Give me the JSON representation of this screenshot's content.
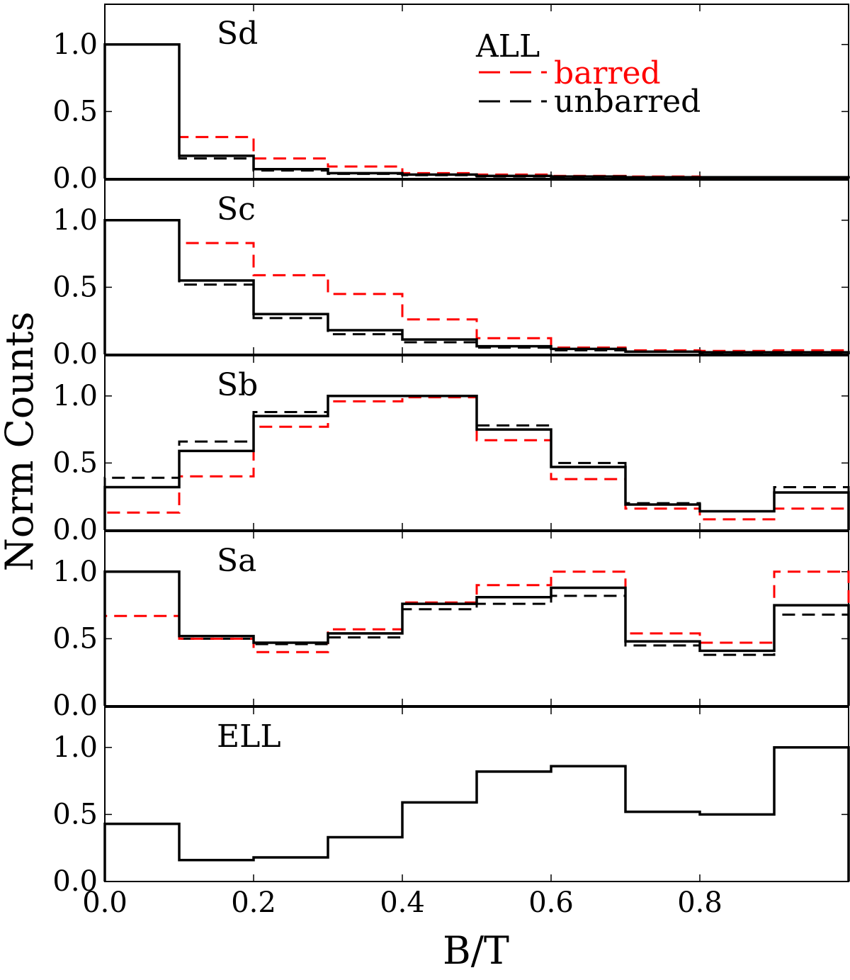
{
  "chart_data": {
    "type": "histogram-step",
    "ylabel": "Norm Counts",
    "xlabel": "B/T",
    "xlim": [
      0.0,
      1.0
    ],
    "ylim": [
      0.0,
      1.3
    ],
    "bin_edges": [
      0.0,
      0.1,
      0.2,
      0.3,
      0.4,
      0.5,
      0.6,
      0.7,
      0.8,
      0.9,
      1.0
    ],
    "x_ticks": [
      0.0,
      0.2,
      0.4,
      0.6,
      0.8
    ],
    "x_tick_labels": [
      "0.0",
      "0.2",
      "0.4",
      "0.6",
      "0.8"
    ],
    "y_ticks": [
      0.0,
      0.5,
      1.0
    ],
    "y_tick_labels": [
      "0.0",
      "0.5",
      "1.0"
    ],
    "colors": {
      "all": "#000000",
      "barred": "#ff0000",
      "unbarred": "#000000"
    },
    "legend": {
      "title": "ALL",
      "entries": [
        {
          "key": "barred",
          "label": "barred",
          "color": "#ff0000",
          "style": "dashed"
        },
        {
          "key": "unbarred",
          "label": "unbarred",
          "color": "#000000",
          "style": "dashed"
        }
      ],
      "placement": "top-right of first panel"
    },
    "panels": [
      {
        "label": "Sd",
        "series": [
          {
            "name": "ALL",
            "style": "solid",
            "color": "#000000",
            "values": [
              1.0,
              0.17,
              0.07,
              0.04,
              0.03,
              0.02,
              0.015,
              0.01,
              0.01,
              0.01
            ]
          },
          {
            "name": "barred",
            "style": "dashed",
            "color": "#ff0000",
            "values": [
              1.0,
              0.31,
              0.15,
              0.09,
              0.04,
              0.03,
              0.02,
              0.015,
              0.01,
              0.01
            ]
          },
          {
            "name": "unbarred",
            "style": "dashed",
            "color": "#000000",
            "values": [
              1.0,
              0.15,
              0.06,
              0.035,
              0.025,
              0.015,
              0.01,
              0.01,
              0.005,
              0.005
            ]
          }
        ]
      },
      {
        "label": "Sc",
        "series": [
          {
            "name": "ALL",
            "style": "solid",
            "color": "#000000",
            "values": [
              1.0,
              0.55,
              0.3,
              0.18,
              0.11,
              0.06,
              0.04,
              0.02,
              0.015,
              0.015
            ]
          },
          {
            "name": "barred",
            "style": "dashed",
            "color": "#ff0000",
            "values": [
              1.0,
              0.83,
              0.59,
              0.45,
              0.26,
              0.12,
              0.05,
              0.03,
              0.025,
              0.03
            ]
          },
          {
            "name": "unbarred",
            "style": "dashed",
            "color": "#000000",
            "values": [
              1.0,
              0.52,
              0.27,
              0.15,
              0.09,
              0.05,
              0.03,
              0.02,
              0.01,
              0.01
            ]
          }
        ]
      },
      {
        "label": "Sb",
        "series": [
          {
            "name": "ALL",
            "style": "solid",
            "color": "#000000",
            "values": [
              0.32,
              0.59,
              0.85,
              1.0,
              1.0,
              0.75,
              0.47,
              0.19,
              0.14,
              0.28
            ]
          },
          {
            "name": "barred",
            "style": "dashed",
            "color": "#ff0000",
            "values": [
              0.13,
              0.4,
              0.77,
              0.96,
              0.99,
              0.67,
              0.38,
              0.16,
              0.08,
              0.16
            ]
          },
          {
            "name": "unbarred",
            "style": "dashed",
            "color": "#000000",
            "values": [
              0.39,
              0.66,
              0.88,
              1.0,
              1.0,
              0.78,
              0.5,
              0.2,
              0.14,
              0.32
            ]
          }
        ]
      },
      {
        "label": "Sa",
        "series": [
          {
            "name": "ALL",
            "style": "solid",
            "color": "#000000",
            "values": [
              1.0,
              0.52,
              0.47,
              0.54,
              0.76,
              0.81,
              0.88,
              0.48,
              0.41,
              0.75
            ]
          },
          {
            "name": "barred",
            "style": "dashed",
            "color": "#ff0000",
            "values": [
              0.67,
              0.5,
              0.4,
              0.57,
              0.77,
              0.9,
              1.0,
              0.54,
              0.47,
              1.0
            ]
          },
          {
            "name": "unbarred",
            "style": "dashed",
            "color": "#000000",
            "values": [
              1.0,
              0.5,
              0.46,
              0.51,
              0.72,
              0.76,
              0.82,
              0.45,
              0.38,
              0.68
            ]
          }
        ]
      },
      {
        "label": "ELL",
        "series": [
          {
            "name": "ALL",
            "style": "solid",
            "color": "#000000",
            "values": [
              0.43,
              0.16,
              0.18,
              0.33,
              0.59,
              0.82,
              0.86,
              0.52,
              0.5,
              1.0
            ]
          }
        ]
      }
    ]
  }
}
